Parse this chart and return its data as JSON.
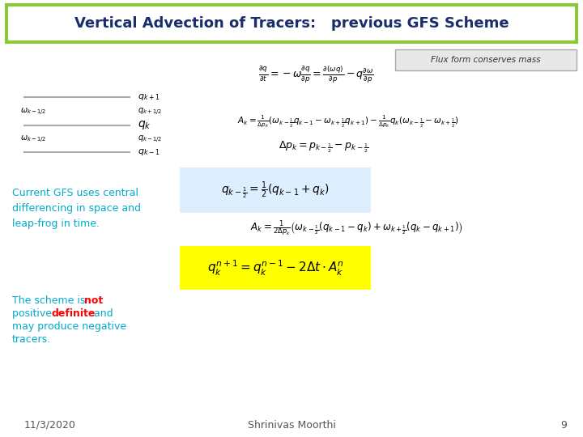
{
  "title": "Vertical Advection of Tracers:   previous GFS Scheme",
  "title_color": "#1a2e6b",
  "title_border_color": "#8dc63f",
  "bg_color": "#ffffff",
  "flux_box_text": "Flux form conserves mass",
  "flux_box_color": "#cccccc",
  "current_gfs_text": "Current GFS uses central\ndifferencing in space and\nleap-frog in time.",
  "current_gfs_color": "#00aacc",
  "scheme_text_parts": [
    {
      "text": "The scheme is ",
      "color": "#00aacc",
      "bold": false
    },
    {
      "text": "not",
      "color": "#ff0000",
      "bold": true
    },
    {
      "text": "\n",
      "color": "#00aacc",
      "bold": false
    },
    {
      "text": "positive ",
      "color": "#00aacc",
      "bold": false
    },
    {
      "text": "definite",
      "color": "#ff0000",
      "bold": true
    },
    {
      "text": " and\nmay produce negative\ntracers.",
      "color": "#00aacc",
      "bold": false
    }
  ],
  "footer_date": "11/3/2020",
  "footer_center": "Shrinivas Moorthi",
  "footer_page": "9",
  "footer_color": "#555555",
  "eq1": "$\\frac{\\partial q}{\\partial t} = -\\omega\\frac{\\partial q}{\\partial p} = \\frac{\\partial}{\\partial p}\\left(\\omega q\\right) - q\\frac{\\partial \\omega}{\\partial p}$",
  "eq2": "$A_k = \\frac{1}{\\Delta p_k}\\left(\\omega_{k-\\frac{1}{2}}q_{k-1} - \\omega_{k+\\frac{1}{2}}q_{k+1}\\right) - \\frac{1}{\\Delta p_k}q_k\\left(\\omega_{k-\\frac{1}{2}} - \\omega_{k+\\frac{1}{2}}\\right)$",
  "eq3": "$\\Delta p_k = p_{k-\\frac{1}{2}} - p_{k+\\frac{1}{2}}$",
  "eq4": "$q_{k-\\frac{1}{2}} = \\frac{1}{2}\\left(q_{k-1} + q_k\\right)$",
  "eq5": "$A_k = \\frac{1}{2\\Delta p_k}\\left(\\omega_{k-\\frac{1}{2}}\\left(q_{k-1} - q_k\\right) + \\omega_{k+\\frac{1}{2}}\\left(q_k - q_{k+1}\\right)\\right)$",
  "eq6": "$q_k^{n+1} = q_k^{n-1} - 2\\Delta t \\cdot A_k^n$"
}
